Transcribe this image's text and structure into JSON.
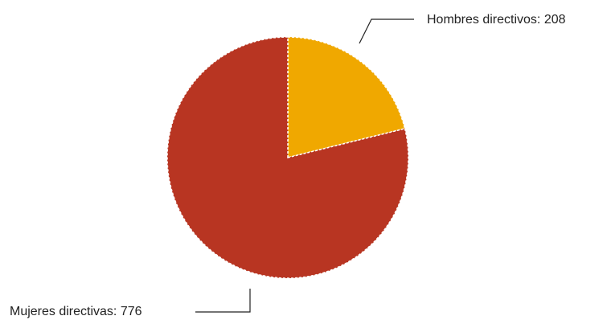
{
  "chart_data": {
    "type": "pie",
    "title": "",
    "slices": [
      {
        "label": "Hombres directivos",
        "value": 208,
        "color": "#f0a800",
        "display": "Hombres directivos: 208"
      },
      {
        "label": "Mujeres directivas",
        "value": 776,
        "color": "#b83522",
        "display": "Mujeres directivas: 776"
      }
    ],
    "slice_border_color": "#ffffff",
    "legend": "none"
  }
}
